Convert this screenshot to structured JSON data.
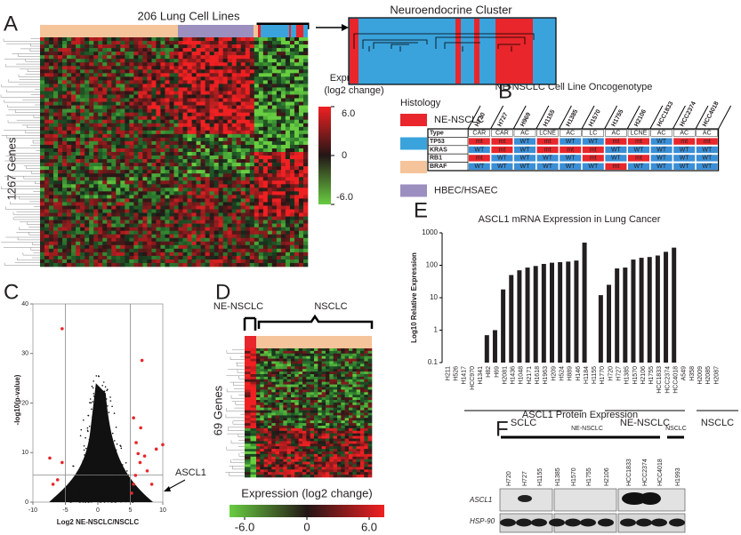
{
  "panel_letters": [
    "A",
    "B",
    "C",
    "D",
    "E",
    "F"
  ],
  "panel_a": {
    "title": "206 Lung Cell Lines",
    "cluster_title": "Neuroendocrine Cluster",
    "genes_label": "1267 Genes",
    "colorbar": {
      "title": [
        "Expression",
        "(log2 change)"
      ],
      "lim": [
        -6,
        6
      ],
      "ticks": [
        {
          "value": 6,
          "label": "6.0"
        },
        0,
        {
          "value": -6,
          "label": "-6.0"
        }
      ]
    },
    "histology": {
      "title": "Histology",
      "items": [
        {
          "label": "NE-NSCLC",
          "color": "#e8262b"
        },
        {
          "label": "SCLC",
          "color": "#3aa3dc"
        },
        {
          "label": "NSCLC",
          "color": "#f5c49a"
        },
        {
          "label": "HBEC/HSAEC",
          "color": "#9b8fc0"
        }
      ]
    }
  },
  "panel_b": {
    "title": "NE-NSCLC Cell Line Oncogenotype",
    "columns": [
      "H720",
      "H727",
      "H969",
      "H1155",
      "H1385",
      "H1570",
      "H1755",
      "H2106",
      "HCC1833",
      "HCC2374",
      "HCC4018"
    ],
    "colors": {
      "mt": "#e8262b",
      "WT": "#3a8fd6"
    },
    "rows": [
      {
        "label": "Type",
        "cells": [
          "CAR",
          "CAR",
          "AC",
          "LCNE",
          "AC",
          "LC",
          "AC",
          "LCNE",
          "AC",
          "AC",
          "AC"
        ]
      },
      {
        "label": "TP53",
        "cells": [
          "mt",
          "mt",
          "WT",
          "mt",
          "WT",
          "WT",
          "mt",
          "mt",
          "WT",
          "mt",
          "mt"
        ]
      },
      {
        "label": "KRAS",
        "cells": [
          "WT",
          "mt",
          "WT",
          "mt",
          "mt",
          "mt",
          "WT",
          "WT",
          "WT",
          "WT",
          "WT"
        ]
      },
      {
        "label": "RB1",
        "cells": [
          "mt",
          "WT",
          "WT",
          "WT",
          "WT",
          "mt",
          "WT",
          "mt",
          "WT",
          "WT",
          "WT"
        ]
      },
      {
        "label": "BRAF",
        "cells": [
          "WT",
          "WT",
          "WT",
          "WT",
          "WT",
          "WT",
          "mt",
          "WT",
          "WT",
          "WT",
          "WT"
        ]
      }
    ]
  },
  "chart_data": [
    {
      "type": "scatter",
      "xlabel": "Log2 NE-NSCLC/NSCLC",
      "ylabel": "-log10(p-value)",
      "annotation": "ASCL1",
      "color": "#e8262b",
      "x": [
        -5.5,
        6.8,
        5.5,
        10,
        9,
        -7.4,
        -5.5,
        -6.2,
        -6.9,
        6.2,
        6.5,
        5.8,
        7.6,
        8.3,
        5.5,
        5.2,
        6.6,
        5.9,
        7.2
      ],
      "values": [
        35,
        28.6,
        17,
        11.6,
        10.7,
        8.9,
        8,
        4.5,
        3.6,
        9.8,
        8,
        5.4,
        6.3,
        3.6,
        3.6,
        1.8,
        15,
        12,
        9.3
      ],
      "xlim": [
        -10,
        10
      ],
      "xticks": [
        -10,
        -5,
        0,
        5,
        10
      ],
      "ylim": [
        0,
        40
      ],
      "yticks": [
        0,
        10,
        20,
        30,
        40
      ],
      "vlines": [
        -5,
        5
      ],
      "hline": 5.5
    },
    {
      "type": "bar",
      "title": "ASCL1 mRNA Expression in Lung Cancer",
      "ylabel": "Log10 Relative Expression",
      "color": "#231f20",
      "log_scale": true,
      "categories": [
        "H211",
        "H526",
        "H1417",
        "HCC970",
        "H1341",
        "H82",
        "H69",
        "H2081",
        "H1436",
        "H1048",
        "H2171",
        "H1618",
        "H1963",
        "H209",
        "H524",
        "H889",
        "H146",
        "H1184",
        "H1155",
        "H1770",
        "H720",
        "H727",
        "H1385",
        "H1570",
        "H2106",
        "H1755",
        "HCC1833",
        "HCC2374",
        "HCC4018",
        "A549",
        "H358",
        "H2009",
        "H2085",
        "H2087"
      ],
      "values": [
        null,
        null,
        null,
        null,
        null,
        0.7,
        1,
        18,
        50,
        70,
        85,
        95,
        110,
        120,
        125,
        130,
        140,
        500,
        null,
        12,
        25,
        80,
        85,
        150,
        170,
        180,
        200,
        260,
        350,
        null,
        null,
        null,
        null,
        null
      ],
      "group_labels": [
        "SCLC",
        "NE-NSCLC",
        "NSCLC"
      ],
      "ylim": [
        0.1,
        1000
      ],
      "yticks": [
        0.1,
        1,
        10,
        100,
        1000
      ]
    }
  ],
  "panel_d": {
    "labels": [
      "NE-NSCLC",
      "NSCLC"
    ],
    "genes_label": "69 Genes",
    "colorbar": {
      "title": "Expression (log2 change)",
      "lim": [
        -6,
        6
      ],
      "ticks": [
        {
          "value": -6,
          "label": "-6.0"
        },
        0,
        {
          "value": 6,
          "label": "6.0"
        }
      ]
    }
  },
  "panel_f": {
    "title": "ASCL1 Protein Expression",
    "group_labels": [
      "NE-NSCLC",
      "NSCLC"
    ],
    "lanes": [
      "H720",
      "H727",
      "H1155",
      "H1385",
      "H1570",
      "H1755",
      "H2106",
      "HCC1833",
      "HCC2374",
      "HCC4018",
      "H1993"
    ],
    "rows": [
      "ASCL1",
      "HSP-90"
    ]
  }
}
